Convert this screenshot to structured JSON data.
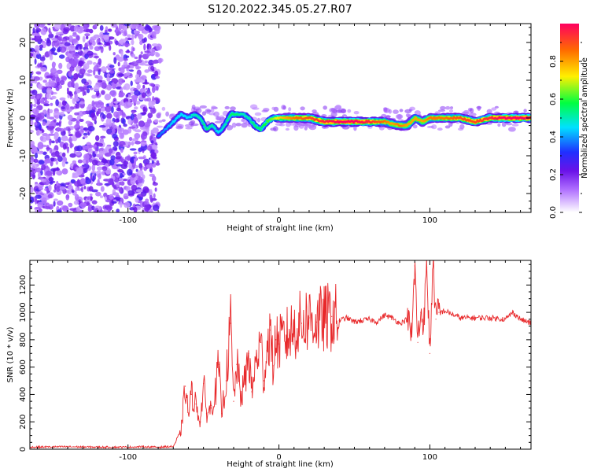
{
  "title": "S120.2022.345.05.27.R07",
  "chart_data": [
    {
      "type": "heatmap",
      "xlabel": "Height of straight line (km)",
      "ylabel": "Frequency (Hz)",
      "xlim": [
        -165,
        167
      ],
      "ylim": [
        -25,
        25
      ],
      "xticks": [
        -100,
        0,
        100
      ],
      "yticks": [
        -20,
        -10,
        0,
        10,
        20
      ],
      "grid": false,
      "colorbar": {
        "label": "Normalized spectral amplitude",
        "range": [
          0,
          1
        ],
        "ticks": [
          0.0,
          0.2,
          0.4,
          0.6,
          0.8
        ],
        "colormap": [
          "#ffffff",
          "#7a1fe0",
          "#2b2bff",
          "#00e5ff",
          "#00ff3a",
          "#ffff00",
          "#ff5a00",
          "#ff0066"
        ]
      },
      "noise_region_x": [
        -165,
        -80
      ],
      "ridge": {
        "x": [
          -80,
          -75,
          -70,
          -65,
          -60,
          -56,
          -52,
          -48,
          -44,
          -40,
          -36,
          -32,
          -28,
          -24,
          -20,
          -16,
          -12,
          -8,
          -4,
          0,
          10,
          20,
          30,
          40,
          50,
          60,
          70,
          75,
          80,
          85,
          90,
          95,
          100,
          110,
          120,
          130,
          140,
          150,
          160,
          167
        ],
        "y": [
          -5,
          -3,
          -1,
          1,
          0,
          1,
          0,
          -3,
          -2,
          -4,
          -2,
          1,
          1,
          1,
          0,
          -2,
          -3,
          -1,
          0,
          0,
          0,
          0,
          -1,
          -1,
          -1,
          -1,
          -1,
          -1.5,
          -2,
          -2,
          0,
          -1,
          0,
          0,
          0,
          -1,
          0,
          0,
          0,
          0
        ],
        "amplitude": [
          0.35,
          0.4,
          0.45,
          0.45,
          0.45,
          0.5,
          0.5,
          0.55,
          0.5,
          0.45,
          0.5,
          0.55,
          0.55,
          0.5,
          0.5,
          0.55,
          0.55,
          0.6,
          0.65,
          0.75,
          0.85,
          0.9,
          0.95,
          1.0,
          1.0,
          0.95,
          0.85,
          0.8,
          0.85,
          0.8,
          0.8,
          0.8,
          0.85,
          0.85,
          0.9,
          0.9,
          0.95,
          1.0,
          1.0,
          1.0
        ]
      }
    },
    {
      "type": "line",
      "xlabel": "Height of straight line (km)",
      "ylabel": "SNR (10 * v/v)",
      "xlim": [
        -165,
        167
      ],
      "ylim": [
        0,
        1380
      ],
      "xticks": [
        -100,
        0,
        100
      ],
      "yticks": [
        0,
        200,
        400,
        600,
        800,
        1000,
        1200
      ],
      "grid": false,
      "color": "#e8282a",
      "x": [
        -165,
        -140,
        -120,
        -100,
        -90,
        -80,
        -70,
        -65,
        -62,
        -60,
        -58,
        -55,
        -52,
        -50,
        -48,
        -45,
        -42,
        -40,
        -38,
        -35,
        -32,
        -30,
        -28,
        -25,
        -22,
        -20,
        -18,
        -15,
        -12,
        -10,
        -8,
        -6,
        -4,
        -2,
        0,
        5,
        10,
        15,
        20,
        25,
        30,
        35,
        40,
        45,
        50,
        55,
        60,
        65,
        70,
        75,
        80,
        85,
        88,
        90,
        92,
        94,
        96,
        98,
        100,
        102,
        104,
        106,
        110,
        120,
        130,
        140,
        150,
        155,
        160,
        167
      ],
      "y": [
        15,
        18,
        15,
        15,
        18,
        15,
        20,
        120,
        460,
        250,
        400,
        330,
        200,
        480,
        260,
        300,
        420,
        620,
        260,
        500,
        920,
        350,
        620,
        380,
        530,
        700,
        420,
        650,
        780,
        500,
        720,
        870,
        610,
        800,
        770,
        820,
        880,
        920,
        960,
        930,
        950,
        970,
        940,
        960,
        930,
        940,
        950,
        930,
        980,
        960,
        920,
        950,
        820,
        1340,
        780,
        1000,
        940,
        1330,
        700,
        1390,
        950,
        1000,
        1010,
        960,
        960,
        960,
        950,
        1000,
        950,
        920
      ]
    }
  ]
}
